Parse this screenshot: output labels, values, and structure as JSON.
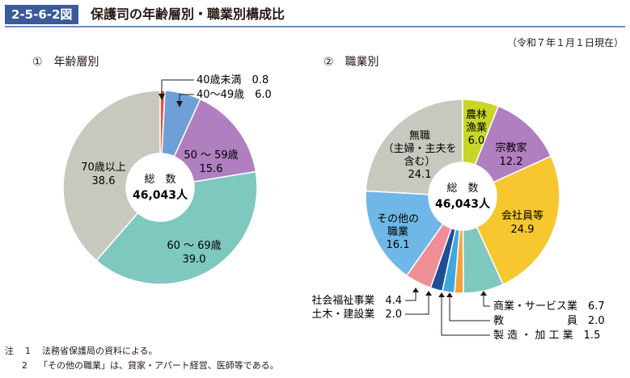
{
  "header": {
    "figure_number": "2-5-6-2図",
    "title": "保護司の年齢層別・職業別構成比"
  },
  "date_note": "（令和７年１月１日現在）",
  "notes": [
    {
      "prefix": "注",
      "num": "1",
      "text": "法務省保護局の資料による。"
    },
    {
      "prefix": "",
      "num": "2",
      "text": "「その他の職業」は、貸家・アパート経営、医師等である。"
    }
  ],
  "chart_data": [
    {
      "type": "pie",
      "title": "①　年齢層別",
      "center_label": "総　数",
      "center_value": "46,043人",
      "slices": [
        {
          "label": "40歳未満",
          "value": 0.8,
          "color": "#e2583e"
        },
        {
          "label": "40〜49歳",
          "value": 6.0,
          "color": "#6f9fd8"
        },
        {
          "label": "50 〜 59歳",
          "value": 15.6,
          "color": "#b07fc0"
        },
        {
          "label": "60 〜 69歳",
          "value": 39.0,
          "color": "#7ec8c0"
        },
        {
          "label": "70歳以上",
          "value": 38.6,
          "color": "#c9c8bf"
        }
      ]
    },
    {
      "type": "pie",
      "title": "②　職業別",
      "center_label": "総　数",
      "center_value": "46,043人",
      "slices": [
        {
          "label": "農林漁業",
          "value": 6.0,
          "color": "#c8d62a"
        },
        {
          "label": "宗教家",
          "value": 12.2,
          "color": "#b07fc0"
        },
        {
          "label": "会社員等",
          "value": 24.9,
          "color": "#f6c72e"
        },
        {
          "label": "商業・サービス業",
          "value": 6.7,
          "color": "#7ec8c0"
        },
        {
          "label": "製造・加工業",
          "value": 1.5,
          "color": "#f2a33c"
        },
        {
          "label": "教員",
          "value": 2.0,
          "color": "#3fa7e0"
        },
        {
          "label": "土木・建設業",
          "value": 2.0,
          "color": "#1f4e96"
        },
        {
          "label": "社会福祉事業",
          "value": 4.4,
          "color": "#f08e98"
        },
        {
          "label": "その他の職業",
          "value": 16.1,
          "color": "#6fb7e6"
        },
        {
          "label": "無職（主婦・主夫を含む）",
          "value": 24.1,
          "color": "#c9c8bf"
        }
      ]
    }
  ]
}
